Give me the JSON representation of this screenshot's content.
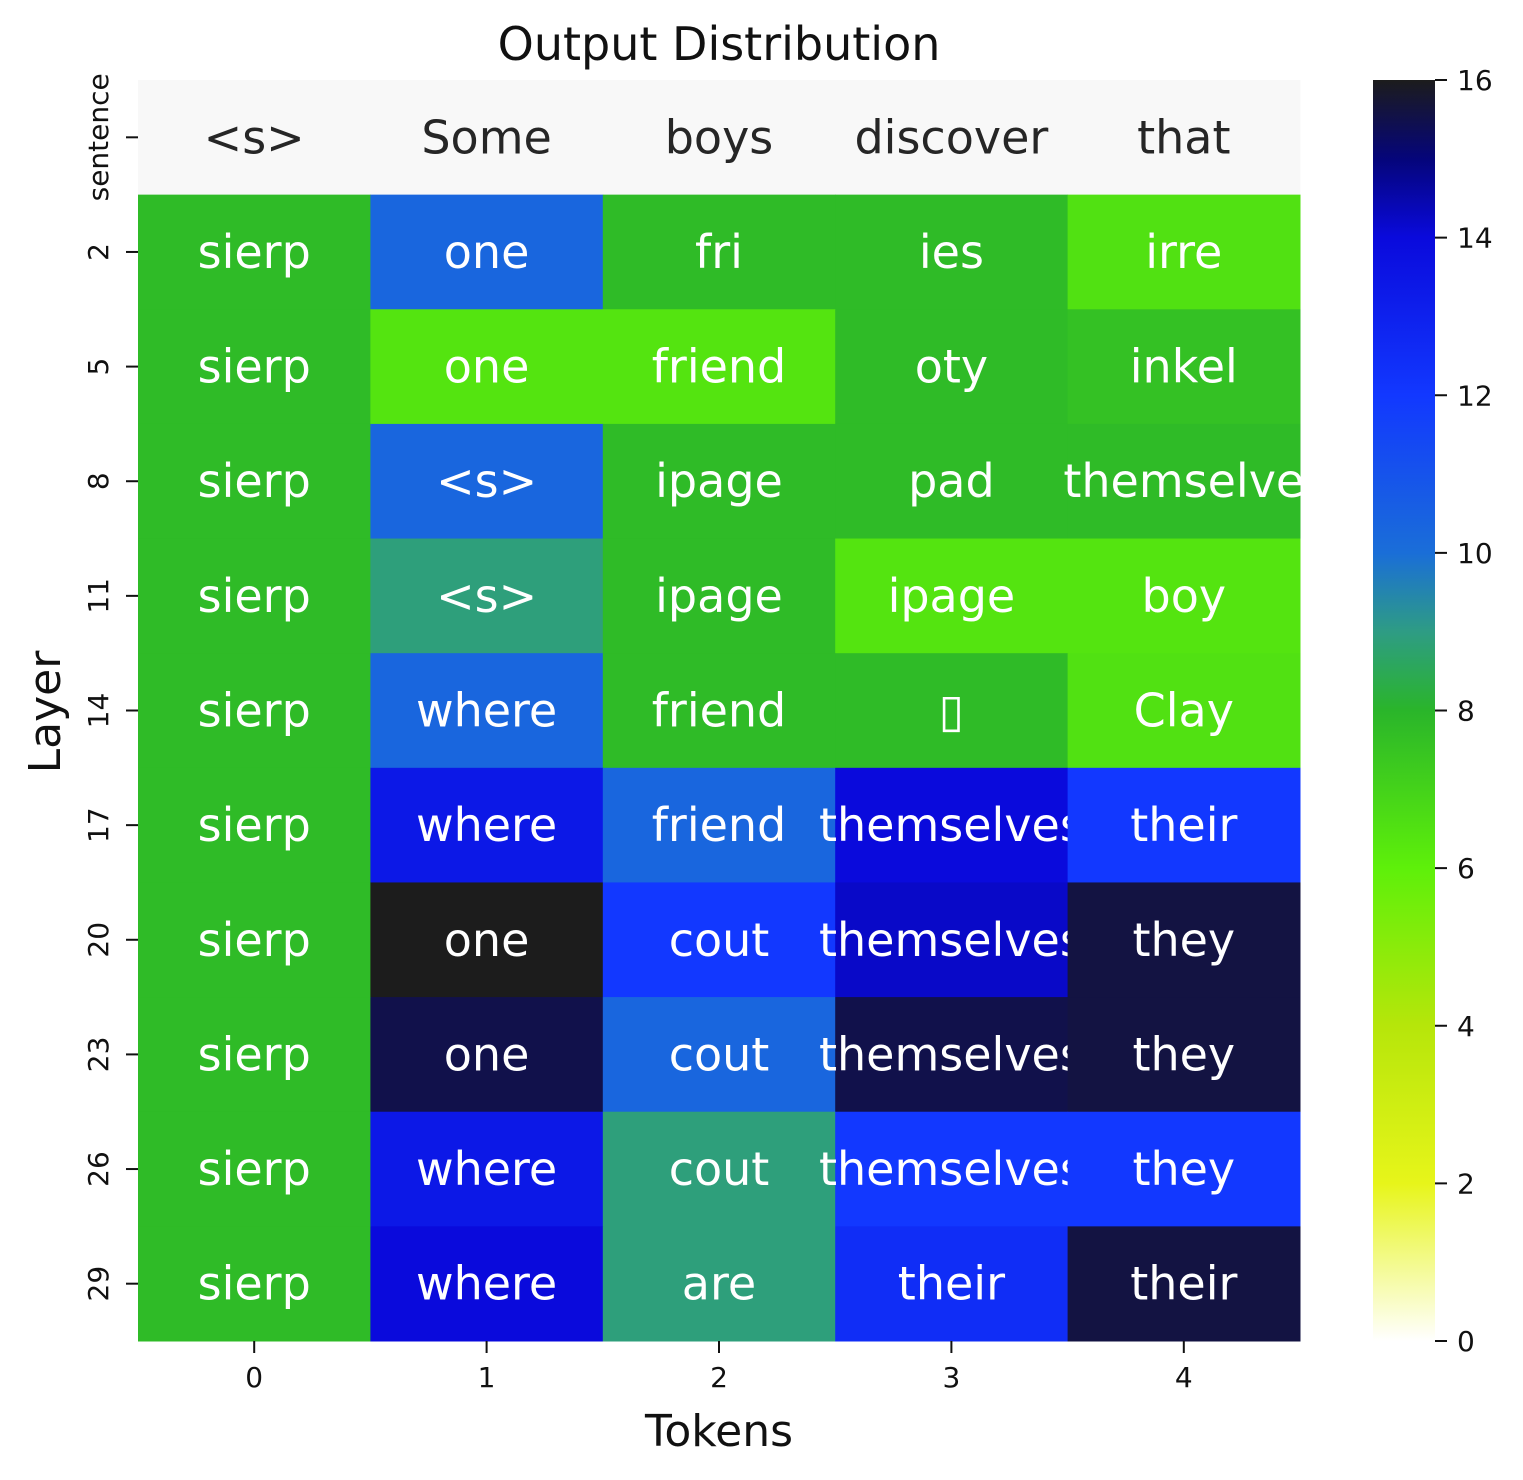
{
  "chart_data": {
    "type": "heatmap",
    "title": "Output Distribution",
    "xlabel": "Tokens",
    "ylabel": "Layer",
    "x_ticks": [
      "0",
      "1",
      "2",
      "3",
      "4"
    ],
    "sentence_row": {
      "label": "sentence",
      "tokens": [
        "<s>",
        "Some",
        "boys",
        "discover",
        "that"
      ]
    },
    "rows": [
      {
        "layer": "2",
        "tokens": [
          "sierp",
          "one",
          "fri",
          "ies",
          "irre"
        ],
        "values": [
          7.8,
          10.3,
          7.8,
          7.8,
          6.5
        ]
      },
      {
        "layer": "5",
        "tokens": [
          "sierp",
          "one",
          "friend",
          "oty",
          "inkel"
        ],
        "values": [
          7.8,
          6.4,
          6.4,
          7.8,
          7.6
        ]
      },
      {
        "layer": "8",
        "tokens": [
          "sierp",
          "<s>",
          "ipage",
          "pad",
          "themselve"
        ],
        "values": [
          7.8,
          10.3,
          7.8,
          7.8,
          7.8
        ]
      },
      {
        "layer": "11",
        "tokens": [
          "sierp",
          "<s>",
          "ipage",
          "ipage",
          "boy"
        ],
        "values": [
          7.8,
          8.9,
          7.8,
          6.4,
          6.4
        ]
      },
      {
        "layer": "14",
        "tokens": [
          "sierp",
          "where",
          "friend",
          "▯",
          "Clay"
        ],
        "values": [
          7.8,
          10.3,
          7.8,
          7.8,
          6.5
        ]
      },
      {
        "layer": "17",
        "tokens": [
          "sierp",
          "where",
          "friend",
          "themselves",
          "their"
        ],
        "values": [
          7.8,
          13.4,
          10.3,
          14.0,
          12.0
        ]
      },
      {
        "layer": "20",
        "tokens": [
          "sierp",
          "one",
          "cout",
          "themselves",
          "they"
        ],
        "values": [
          7.8,
          16.2,
          12.0,
          14.2,
          15.6
        ]
      },
      {
        "layer": "23",
        "tokens": [
          "sierp",
          "one",
          "cout",
          "themselves",
          "they"
        ],
        "values": [
          7.8,
          15.5,
          10.3,
          15.5,
          15.6
        ]
      },
      {
        "layer": "26",
        "tokens": [
          "sierp",
          "where",
          "cout",
          "themselves",
          "they"
        ],
        "values": [
          7.8,
          13.4,
          8.9,
          12.0,
          12.0
        ]
      },
      {
        "layer": "29",
        "tokens": [
          "sierp",
          "where",
          "are",
          "their",
          "their"
        ],
        "values": [
          7.8,
          14.0,
          8.9,
          12.5,
          15.6
        ]
      }
    ],
    "colorbar": {
      "vmin": 0,
      "vmax": 16,
      "ticks": [
        "0",
        "2",
        "4",
        "6",
        "8",
        "10",
        "12",
        "14",
        "16"
      ],
      "stops": [
        {
          "v": 0,
          "color": "#ffffff"
        },
        {
          "v": 2,
          "color": "#e7f51a"
        },
        {
          "v": 4,
          "color": "#b6e60a"
        },
        {
          "v": 6,
          "color": "#5ef00a"
        },
        {
          "v": 8,
          "color": "#2ab52a"
        },
        {
          "v": 9,
          "color": "#2e9c84"
        },
        {
          "v": 10,
          "color": "#1a6ed8"
        },
        {
          "v": 12,
          "color": "#1238ff"
        },
        {
          "v": 14,
          "color": "#0a0adc"
        },
        {
          "v": 15,
          "color": "#05057a"
        },
        {
          "v": 16,
          "color": "#1c1c1c"
        }
      ]
    },
    "sentence_row_color": "#f8f8f8"
  }
}
